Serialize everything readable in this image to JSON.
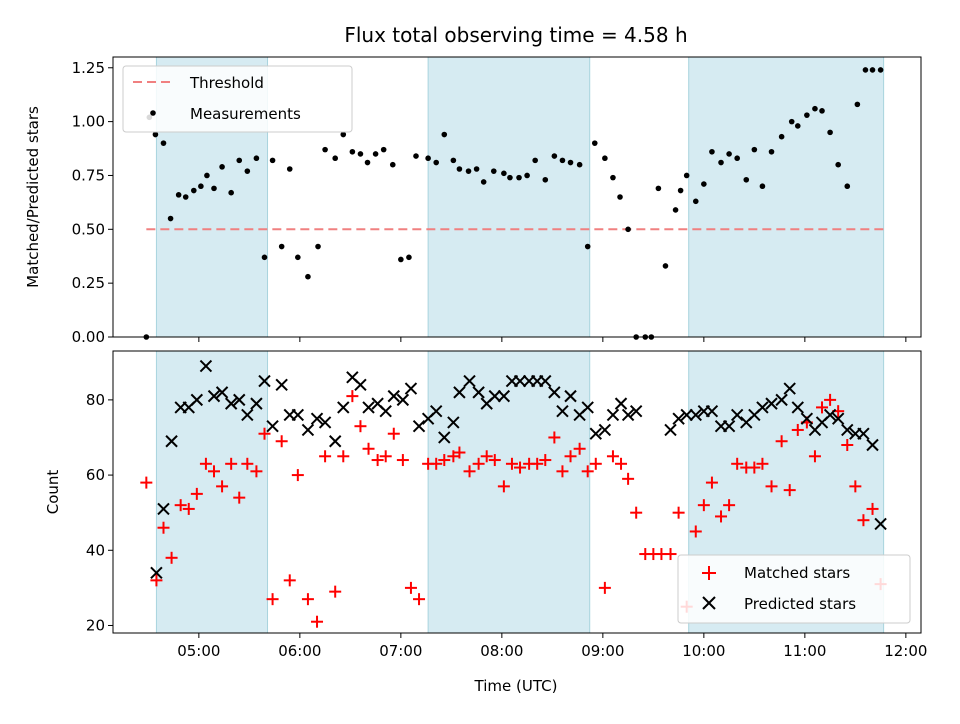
{
  "chart_data": {
    "title": "Flux total observing time = 4.58 h",
    "xlabel": "Time (UTC)",
    "x_ticks": [
      "05:00",
      "06:00",
      "07:00",
      "08:00",
      "09:00",
      "10:00",
      "11:00",
      "12:00"
    ],
    "x_range_hours": [
      4.15,
      12.15
    ],
    "shaded_intervals_hours": [
      [
        4.58,
        5.68
      ],
      [
        7.27,
        8.87
      ],
      [
        9.85,
        11.78
      ]
    ],
    "top": {
      "type": "scatter",
      "ylabel": "Matched/Predicted stars",
      "ylim": [
        0,
        1.3
      ],
      "y_ticks": [
        "0.00",
        "0.25",
        "0.50",
        "0.75",
        "1.00",
        "1.25"
      ],
      "threshold": 0.5,
      "threshold_x_range": [
        4.48,
        11.78
      ],
      "legend": {
        "threshold": "Threshold",
        "measurements": "Measurements"
      },
      "series": [
        {
          "name": "Measurements",
          "x": [
            4.48,
            4.51,
            4.57,
            4.65,
            4.72,
            4.8,
            4.87,
            4.95,
            5.02,
            5.08,
            5.15,
            5.23,
            5.32,
            5.4,
            5.48,
            5.57,
            5.65,
            5.73,
            5.82,
            5.9,
            5.98,
            6.08,
            6.18,
            6.25,
            6.35,
            6.43,
            6.52,
            6.6,
            6.67,
            6.75,
            6.83,
            6.92,
            7.0,
            7.08,
            7.15,
            7.27,
            7.35,
            7.43,
            7.52,
            7.58,
            7.67,
            7.75,
            7.82,
            7.92,
            8.02,
            8.08,
            8.17,
            8.25,
            8.33,
            8.43,
            8.52,
            8.6,
            8.68,
            8.77,
            8.85,
            8.92,
            9.02,
            9.1,
            9.17,
            9.25,
            9.33,
            9.42,
            9.48,
            9.55,
            9.62,
            9.72,
            9.77,
            9.83,
            9.92,
            10.0,
            10.08,
            10.17,
            10.25,
            10.33,
            10.42,
            10.5,
            10.58,
            10.67,
            10.77,
            10.87,
            10.93,
            11.02,
            11.1,
            11.17,
            11.25,
            11.33,
            11.42,
            11.52,
            11.6,
            11.67,
            11.75
          ],
          "y": [
            0.0,
            1.02,
            0.94,
            0.9,
            0.55,
            0.66,
            0.65,
            0.68,
            0.7,
            0.75,
            0.69,
            0.79,
            0.67,
            0.82,
            0.77,
            0.83,
            0.37,
            0.82,
            0.42,
            0.78,
            0.37,
            0.28,
            0.42,
            0.87,
            0.83,
            0.94,
            0.86,
            0.85,
            0.81,
            0.85,
            0.87,
            0.8,
            0.36,
            0.37,
            0.84,
            0.83,
            0.81,
            0.94,
            0.82,
            0.78,
            0.77,
            0.78,
            0.72,
            0.77,
            0.76,
            0.74,
            0.74,
            0.75,
            0.82,
            0.73,
            0.84,
            0.82,
            0.81,
            0.8,
            0.42,
            0.9,
            0.83,
            0.74,
            0.65,
            0.5,
            0.0,
            0.0,
            0.0,
            0.69,
            0.33,
            0.59,
            0.68,
            0.75,
            0.63,
            0.71,
            0.86,
            0.81,
            0.85,
            0.83,
            0.73,
            0.87,
            0.7,
            0.86,
            0.93,
            1.0,
            0.98,
            1.03,
            1.06,
            1.05,
            0.95,
            0.8,
            0.7,
            1.08,
            1.24,
            1.24,
            1.24
          ]
        }
      ]
    },
    "bottom": {
      "type": "scatter",
      "ylabel": "Count",
      "ylim": [
        18,
        93
      ],
      "y_ticks": [
        "20",
        "40",
        "60",
        "80"
      ],
      "series": [
        {
          "name": "Matched stars",
          "color": "#ff0000",
          "marker": "+",
          "x": [
            4.48,
            4.58,
            4.65,
            4.73,
            4.82,
            4.9,
            4.98,
            5.07,
            5.15,
            5.23,
            5.32,
            5.4,
            5.48,
            5.57,
            5.65,
            5.73,
            5.82,
            5.9,
            5.98,
            6.08,
            6.17,
            6.25,
            6.35,
            6.43,
            6.52,
            6.6,
            6.68,
            6.77,
            6.85,
            6.93,
            7.02,
            7.1,
            7.18,
            7.27,
            7.35,
            7.43,
            7.52,
            7.58,
            7.68,
            7.77,
            7.85,
            7.93,
            8.02,
            8.1,
            8.18,
            8.27,
            8.35,
            8.43,
            8.52,
            8.6,
            8.68,
            8.77,
            8.85,
            8.93,
            9.02,
            9.1,
            9.18,
            9.25,
            9.33,
            9.42,
            9.5,
            9.58,
            9.67,
            9.75,
            9.83,
            9.92,
            10.0,
            10.08,
            10.17,
            10.25,
            10.33,
            10.42,
            10.5,
            10.58,
            10.67,
            10.77,
            10.85,
            10.93,
            11.02,
            11.1,
            11.17,
            11.25,
            11.33,
            11.42,
            11.5,
            11.58,
            11.67,
            11.75
          ],
          "y": [
            58,
            32,
            46,
            38,
            52,
            51,
            55,
            63,
            61,
            57,
            63,
            54,
            63,
            61,
            71,
            27,
            69,
            32,
            60,
            27,
            21,
            65,
            29,
            65,
            81,
            73,
            67,
            64,
            65,
            71,
            64,
            30,
            27,
            63,
            63,
            64,
            65,
            66,
            61,
            63,
            65,
            64,
            57,
            63,
            62,
            63,
            63,
            64,
            70,
            61,
            65,
            67,
            61,
            63,
            30,
            65,
            63,
            59,
            50,
            39,
            39,
            39,
            39,
            50,
            25,
            45,
            52,
            58,
            49,
            52,
            63,
            62,
            62,
            63,
            57,
            69,
            56,
            72,
            74,
            65,
            78,
            80,
            77,
            68,
            57,
            48,
            51,
            31
          ]
        },
        {
          "name": "Predicted stars",
          "color": "#000000",
          "marker": "x",
          "x": [
            4.58,
            4.65,
            4.73,
            4.82,
            4.9,
            4.98,
            5.07,
            5.15,
            5.23,
            5.32,
            5.4,
            5.48,
            5.57,
            5.65,
            5.73,
            5.82,
            5.9,
            5.98,
            6.08,
            6.17,
            6.25,
            6.35,
            6.43,
            6.52,
            6.6,
            6.68,
            6.77,
            6.85,
            6.93,
            7.02,
            7.1,
            7.18,
            7.27,
            7.35,
            7.43,
            7.52,
            7.58,
            7.68,
            7.77,
            7.85,
            7.93,
            8.02,
            8.1,
            8.18,
            8.27,
            8.35,
            8.43,
            8.52,
            8.6,
            8.68,
            8.77,
            8.85,
            8.93,
            9.02,
            9.1,
            9.18,
            9.25,
            9.33,
            9.67,
            9.75,
            9.83,
            9.92,
            10.0,
            10.08,
            10.17,
            10.25,
            10.33,
            10.42,
            10.5,
            10.58,
            10.67,
            10.77,
            10.85,
            10.93,
            11.02,
            11.1,
            11.17,
            11.25,
            11.33,
            11.42,
            11.5,
            11.58,
            11.67,
            11.75
          ],
          "y": [
            34,
            51,
            69,
            78,
            78,
            80,
            89,
            81,
            82,
            79,
            80,
            76,
            79,
            85,
            73,
            84,
            76,
            76,
            72,
            75,
            74,
            69,
            78,
            86,
            84,
            78,
            79,
            77,
            81,
            80,
            83,
            73,
            75,
            77,
            70,
            74,
            82,
            85,
            82,
            79,
            81,
            81,
            85,
            85,
            85,
            85,
            85,
            82,
            77,
            81,
            76,
            78,
            71,
            72,
            76,
            79,
            76,
            77,
            72,
            75,
            76,
            76,
            77,
            77,
            73,
            73,
            76,
            74,
            76,
            78,
            79,
            80,
            83,
            78,
            75,
            72,
            74,
            76,
            75,
            72,
            71,
            71,
            68,
            47
          ]
        }
      ]
    }
  }
}
